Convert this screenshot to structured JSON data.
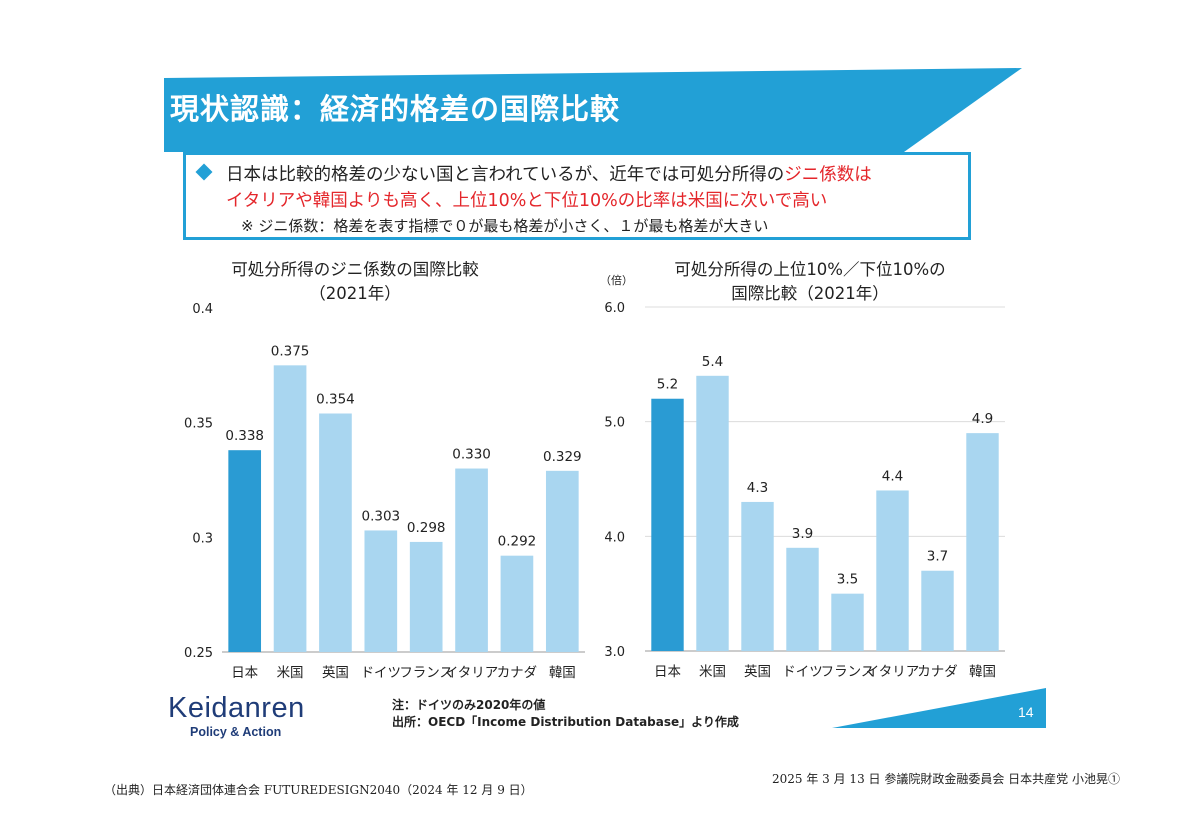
{
  "slide": {
    "title": "現状認識：経済的格差の国際比較",
    "page_number": "14"
  },
  "summary": {
    "line1_before": "日本は比較的格差の少ない国と言われているが、近年では可処分所得の",
    "line1_highlight": "ジニ係数は",
    "line2": "イタリアや韓国よりも高く、上位10%と下位10%の比率は米国に次いで高い",
    "note": "※ ジニ係数：格差を表す指標で０が最も格差が小さく、１が最も格差が大きい"
  },
  "colors": {
    "japan_bar": "#2a9bd3",
    "other_bar": "#a9d6f0",
    "accent_blue": "#22a0d6",
    "highlight_red": "#e4262b",
    "logo_navy": "#1f3c78"
  },
  "chart_data": [
    {
      "type": "bar",
      "title": "可処分所得のジニ係数の国際比較",
      "subtitle": "（2021年）",
      "categories": [
        "日本",
        "米国",
        "英国",
        "ドイツ",
        "フランス",
        "イタリア",
        "カナダ",
        "韓国"
      ],
      "values": [
        0.338,
        0.375,
        0.354,
        0.303,
        0.298,
        0.33,
        0.292,
        0.329
      ],
      "value_labels": [
        "0.338",
        "0.375",
        "0.354",
        "0.303",
        "0.298",
        "0.330",
        "0.292",
        "0.329"
      ],
      "yticks": [
        0.4,
        0.35,
        0.3,
        0.25
      ],
      "ytick_labels": [
        "0.4",
        "0.35",
        "0.3",
        "0.25"
      ],
      "ylim": [
        0.25,
        0.4
      ],
      "unit": "",
      "highlight_category": "日本",
      "grid": false
    },
    {
      "type": "bar",
      "title": "可処分所得の上位10%／下位10%の",
      "subtitle": "国際比較（2021年）",
      "categories": [
        "日本",
        "米国",
        "英国",
        "ドイツ",
        "フランス",
        "イタリア",
        "カナダ",
        "韓国"
      ],
      "values": [
        5.2,
        5.4,
        4.3,
        3.9,
        3.5,
        4.4,
        3.7,
        4.9
      ],
      "value_labels": [
        "5.2",
        "5.4",
        "4.3",
        "3.9",
        "3.5",
        "4.4",
        "3.7",
        "4.9"
      ],
      "yticks": [
        6.0,
        5.0,
        4.0,
        3.0
      ],
      "ytick_labels": [
        "6.0",
        "5.0",
        "4.0",
        "3.0"
      ],
      "ylim": [
        3.0,
        6.0
      ],
      "unit": "（倍）",
      "highlight_category": "日本",
      "grid": true
    }
  ],
  "notes": {
    "note": "注：ドイツのみ2020年の値",
    "source": "出所：OECD「Income Distribution Database」より作成"
  },
  "logo": {
    "name": "Keidanren",
    "tagline": "Policy & Action"
  },
  "footer": {
    "source_left": "（出典）日本経済団体連合会 FUTUREDESIGN2040（2024 年 12 月 9 日）",
    "source_right": "2025 年 3 月 13 日 参議院財政金融委員会 日本共産党 小池晃①"
  }
}
